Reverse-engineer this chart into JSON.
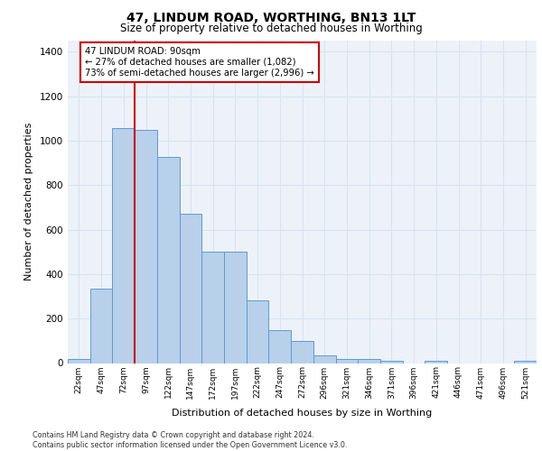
{
  "title1": "47, LINDUM ROAD, WORTHING, BN13 1LT",
  "title2": "Size of property relative to detached houses in Worthing",
  "xlabel": "Distribution of detached houses by size in Worthing",
  "ylabel": "Number of detached properties",
  "categories": [
    "22sqm",
    "47sqm",
    "72sqm",
    "97sqm",
    "122sqm",
    "147sqm",
    "172sqm",
    "197sqm",
    "222sqm",
    "247sqm",
    "272sqm",
    "296sqm",
    "321sqm",
    "346sqm",
    "371sqm",
    "396sqm",
    "421sqm",
    "446sqm",
    "471sqm",
    "496sqm",
    "521sqm"
  ],
  "values": [
    18,
    335,
    1058,
    1050,
    925,
    670,
    500,
    500,
    280,
    150,
    100,
    35,
    20,
    20,
    12,
    0,
    12,
    0,
    0,
    0,
    10
  ],
  "bar_color": "#b8d0ea",
  "bar_edge_color": "#5b9bd5",
  "vline_color": "#cc0000",
  "annotation_text": "47 LINDUM ROAD: 90sqm\n← 27% of detached houses are smaller (1,082)\n73% of semi-detached houses are larger (2,996) →",
  "annotation_box_color": "#ffffff",
  "annotation_box_edge": "#cc0000",
  "footnote": "Contains HM Land Registry data © Crown copyright and database right 2024.\nContains public sector information licensed under the Open Government Licence v3.0.",
  "ylim": [
    0,
    1450
  ],
  "yticks": [
    0,
    200,
    400,
    600,
    800,
    1000,
    1200,
    1400
  ],
  "background_color": "#edf2f9",
  "grid_color": "#d8e4f0"
}
